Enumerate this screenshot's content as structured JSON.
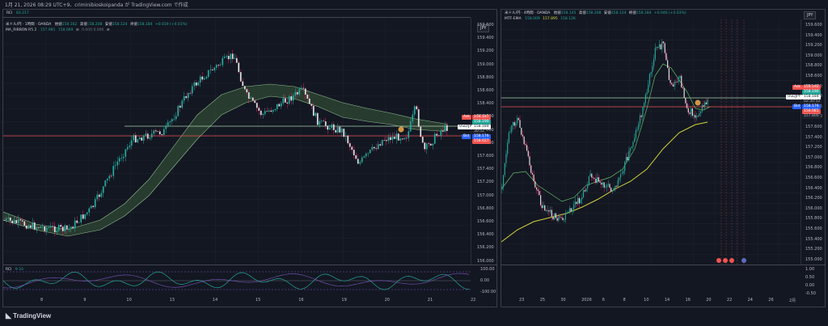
{
  "header": {
    "text": "1月 21, 2026 08:29 UTC+9、criminibioskoipanda が TradingView.com で作成"
  },
  "left_panel": {
    "rci_top_label": "RCI",
    "rci_top_value": "83.217",
    "title_line": "米ドル/円 · 1時間 · OANDA",
    "open_label": "始値",
    "open_value": "158.162",
    "high_label": "高値",
    "high_value": "158.208",
    "low_label": "安値",
    "low_value": "158.124",
    "close_label": "終値",
    "close_value": "158.184",
    "change": "+0.019 (+0.01%)",
    "indicator_name": "MA_RIBBON R5.2",
    "indicator_vals": [
      "157.981",
      "158.069"
    ],
    "indicator_extra": "0.000  0.000",
    "currency": "JPY",
    "y_ticks": [
      "159.600",
      "159.400",
      "159.200",
      "159.000",
      "158.800",
      "158.600",
      "158.400",
      "158.200",
      "158.000",
      "157.800",
      "157.600",
      "157.400",
      "157.200",
      "157.000",
      "156.800",
      "156.600",
      "156.400",
      "156.200",
      "156.000"
    ],
    "x_ticks": [
      "8",
      "9",
      "10",
      "13",
      "14",
      "15",
      "16",
      "19",
      "20",
      "21",
      "22"
    ],
    "price_labels": {
      "ask_tag": "Ask",
      "ask": "158.187",
      "mid1": "158.190",
      "symbol": "USD/JPY",
      "price": "158.184",
      "countdown": "30:52",
      "bid_tag": "Bid",
      "bid": "158.176",
      "red": "158.027"
    },
    "rci_bottom_label": "RCI",
    "rci_bottom_period": "9 33",
    "rci_ticks": [
      "100.00",
      "0.00",
      "-100.00"
    ]
  },
  "right_panel": {
    "title_line": "米ドル/円 · 4時間 · OANDA",
    "open_label": "始値",
    "open_value": "158.145",
    "high_label": "高値",
    "high_value": "158.208",
    "low_label": "安値",
    "low_value": "158.124",
    "close_label": "終値",
    "close_value": "158.184",
    "change": "+0.046 (+0.03%)",
    "indicator_name": "MTF-EMA",
    "indicator_vals": [
      "158.009",
      "157.895",
      "158.126"
    ],
    "currency": "JPY",
    "y_ticks": [
      "159.600",
      "159.400",
      "159.200",
      "159.000",
      "158.800",
      "158.600",
      "158.400",
      "158.200",
      "158.000",
      "157.800",
      "157.600",
      "157.400",
      "157.200",
      "157.000",
      "156.800",
      "156.600",
      "156.400",
      "156.200",
      "156.000",
      "155.800",
      "155.600",
      "155.400",
      "155.200",
      "155.000"
    ],
    "x_ticks": [
      "23",
      "25",
      "30",
      "2026",
      "6",
      "8",
      "10",
      "14",
      "16",
      "20",
      "22",
      "24",
      "26",
      "2月"
    ],
    "price_labels": {
      "ask_tag": "Ask",
      "ask": "158.192",
      "mid1": "158.190",
      "symbol": "USDJPY",
      "price": "158.184",
      "countdown": "02:30:52",
      "bid_tag": "Bid",
      "bid": "158.176",
      "red1": "158.081",
      "red2": "157.800"
    },
    "lower_ticks": [
      "1.00",
      "0.50",
      "0.00",
      "-0.50"
    ]
  },
  "footer": {
    "logo": "TradingView"
  },
  "colors": {
    "bg": "#131722",
    "green": "#26a69a",
    "red": "#ef5350",
    "pink": "#e91e63",
    "ema_yellow": "#d4d43c",
    "ribbon": "#3b5a3b"
  }
}
